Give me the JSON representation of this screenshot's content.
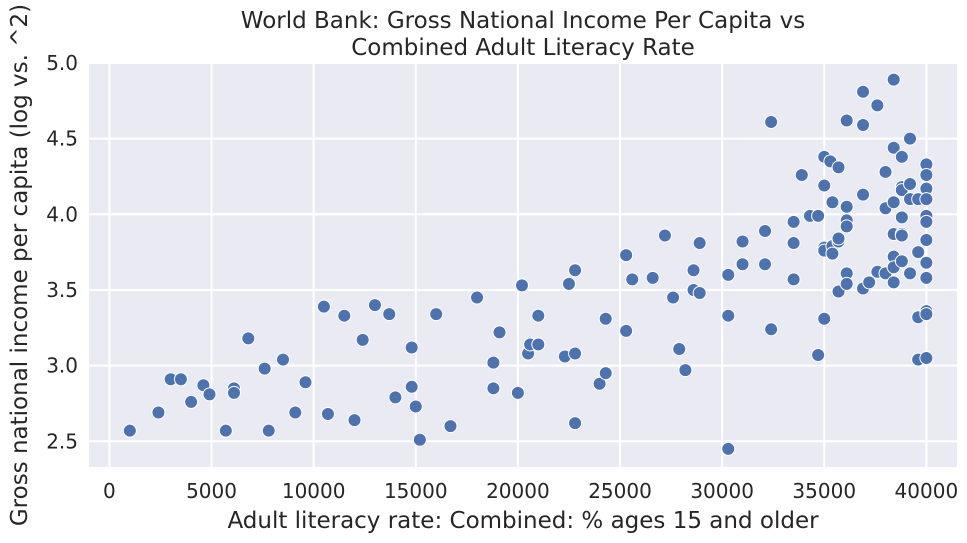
{
  "chart_data": {
    "type": "scatter",
    "title_lines": [
      "World Bank: Gross National Income Per Capita vs",
      "Combined Adult Literacy Rate"
    ],
    "xlabel": "Adult literacy rate: Combined: % ages 15 and older",
    "ylabel": "Gross national income per capita (log vs. ^2)",
    "xlim": [
      -1000,
      41500
    ],
    "ylim": [
      2.33,
      5.0
    ],
    "xticks": [
      0,
      5000,
      10000,
      15000,
      20000,
      25000,
      30000,
      35000,
      40000
    ],
    "yticks": [
      2.5,
      3.0,
      3.5,
      4.0,
      4.5,
      5.0
    ],
    "xtick_labels": [
      "0",
      "5000",
      "10000",
      "15000",
      "20000",
      "25000",
      "30000",
      "35000",
      "40000"
    ],
    "ytick_labels": [
      "2.5",
      "3.0",
      "3.5",
      "4.0",
      "4.5",
      "5.0"
    ],
    "grid": true,
    "background_color": "#eaeaf2",
    "grid_color": "#ffffff",
    "point_color": "#4c72b0",
    "points": [
      [
        1000,
        2.57
      ],
      [
        2400,
        2.69
      ],
      [
        3000,
        2.91
      ],
      [
        3500,
        2.91
      ],
      [
        4000,
        2.76
      ],
      [
        4600,
        2.87
      ],
      [
        4900,
        2.81
      ],
      [
        5700,
        2.57
      ],
      [
        6100,
        2.85
      ],
      [
        6100,
        2.82
      ],
      [
        6800,
        3.18
      ],
      [
        7600,
        2.98
      ],
      [
        7800,
        2.57
      ],
      [
        8500,
        3.04
      ],
      [
        9100,
        2.69
      ],
      [
        9600,
        2.89
      ],
      [
        10500,
        3.39
      ],
      [
        10700,
        2.68
      ],
      [
        11500,
        3.33
      ],
      [
        12000,
        2.64
      ],
      [
        12400,
        3.17
      ],
      [
        13000,
        3.4
      ],
      [
        13700,
        3.34
      ],
      [
        14000,
        2.79
      ],
      [
        14800,
        3.12
      ],
      [
        14800,
        2.86
      ],
      [
        15000,
        2.73
      ],
      [
        15200,
        2.51
      ],
      [
        16000,
        3.34
      ],
      [
        16700,
        2.6
      ],
      [
        18000,
        3.45
      ],
      [
        18800,
        3.02
      ],
      [
        18800,
        2.85
      ],
      [
        19100,
        3.22
      ],
      [
        20000,
        2.82
      ],
      [
        20200,
        3.53
      ],
      [
        20500,
        3.08
      ],
      [
        20600,
        3.14
      ],
      [
        21000,
        3.14
      ],
      [
        21000,
        3.33
      ],
      [
        22300,
        3.06
      ],
      [
        22500,
        3.54
      ],
      [
        22800,
        3.63
      ],
      [
        22800,
        3.08
      ],
      [
        22800,
        2.62
      ],
      [
        24000,
        2.88
      ],
      [
        24300,
        3.31
      ],
      [
        24300,
        2.95
      ],
      [
        25300,
        3.73
      ],
      [
        25300,
        3.23
      ],
      [
        25600,
        3.57
      ],
      [
        26600,
        3.58
      ],
      [
        27200,
        3.86
      ],
      [
        27600,
        3.45
      ],
      [
        27900,
        3.11
      ],
      [
        28200,
        2.97
      ],
      [
        28600,
        3.63
      ],
      [
        28600,
        3.5
      ],
      [
        28900,
        3.81
      ],
      [
        28900,
        3.48
      ],
      [
        30300,
        3.6
      ],
      [
        30300,
        3.33
      ],
      [
        30300,
        2.45
      ],
      [
        31000,
        3.82
      ],
      [
        31000,
        3.67
      ],
      [
        32100,
        3.89
      ],
      [
        32100,
        3.67
      ],
      [
        32400,
        4.61
      ],
      [
        32400,
        3.24
      ],
      [
        33500,
        3.95
      ],
      [
        33500,
        3.81
      ],
      [
        33500,
        3.57
      ],
      [
        33900,
        4.26
      ],
      [
        34300,
        3.99
      ],
      [
        34700,
        3.99
      ],
      [
        34700,
        3.07
      ],
      [
        35000,
        4.38
      ],
      [
        35000,
        4.19
      ],
      [
        35000,
        3.78
      ],
      [
        35000,
        3.76
      ],
      [
        35000,
        3.31
      ],
      [
        35300,
        4.35
      ],
      [
        35400,
        3.79
      ],
      [
        35400,
        3.74
      ],
      [
        35400,
        4.08
      ],
      [
        35700,
        4.31
      ],
      [
        35700,
        3.82
      ],
      [
        35700,
        3.84
      ],
      [
        35700,
        3.49
      ],
      [
        36100,
        4.62
      ],
      [
        36100,
        4.05
      ],
      [
        36100,
        3.96
      ],
      [
        36100,
        3.92
      ],
      [
        36100,
        3.61
      ],
      [
        36100,
        3.54
      ],
      [
        36900,
        4.81
      ],
      [
        36900,
        4.59
      ],
      [
        36900,
        4.13
      ],
      [
        36900,
        3.51
      ],
      [
        37200,
        3.55
      ],
      [
        37600,
        4.72
      ],
      [
        37600,
        3.62
      ],
      [
        38000,
        4.28
      ],
      [
        38000,
        4.04
      ],
      [
        38000,
        3.61
      ],
      [
        38400,
        4.89
      ],
      [
        38400,
        4.44
      ],
      [
        38400,
        4.08
      ],
      [
        38400,
        3.87
      ],
      [
        38400,
        3.72
      ],
      [
        38400,
        3.65
      ],
      [
        38400,
        3.55
      ],
      [
        38800,
        4.38
      ],
      [
        38800,
        4.18
      ],
      [
        38800,
        4.16
      ],
      [
        38800,
        3.98
      ],
      [
        38800,
        3.87
      ],
      [
        38800,
        3.86
      ],
      [
        38800,
        3.69
      ],
      [
        39200,
        4.5
      ],
      [
        39200,
        4.2
      ],
      [
        39200,
        4.1
      ],
      [
        39200,
        3.61
      ],
      [
        39600,
        4.1
      ],
      [
        39600,
        3.75
      ],
      [
        39600,
        3.32
      ],
      [
        39600,
        3.04
      ],
      [
        40000,
        4.33
      ],
      [
        40000,
        4.26
      ],
      [
        40000,
        4.17
      ],
      [
        40000,
        4.1
      ],
      [
        40000,
        3.99
      ],
      [
        40000,
        3.95
      ],
      [
        40000,
        3.83
      ],
      [
        40000,
        3.68
      ],
      [
        40000,
        3.58
      ],
      [
        40000,
        3.36
      ],
      [
        40000,
        3.34
      ],
      [
        40000,
        3.05
      ]
    ]
  }
}
